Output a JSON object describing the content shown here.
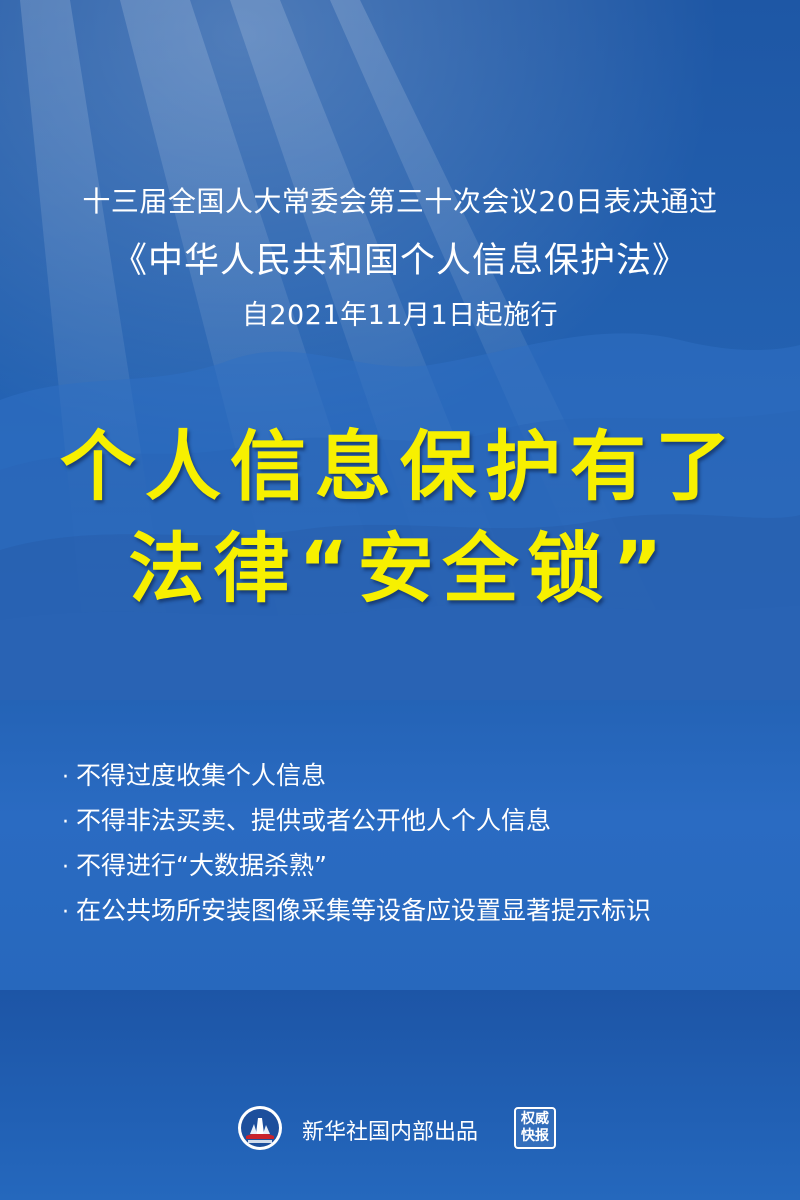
{
  "header": {
    "line1": "十三届全国人大常委会第三十次会议20日表决通过",
    "line2": "《中华人民共和国个人信息保护法》",
    "line3": "自2021年11月1日起施行"
  },
  "headline": {
    "line1": "个人信息保护有了",
    "line2": "法律“安全锁”"
  },
  "rules": [
    {
      "bullet": "·",
      "text": "不得过度收集个人信息"
    },
    {
      "bullet": "·",
      "text": "不得非法买卖、提供或者公开他人个人信息"
    },
    {
      "bullet": "·",
      "text": "不得进行“大数据杀熟”"
    },
    {
      "bullet": "·",
      "text": "在公共场所安装图像采集等设备应设置显著提示标识"
    }
  ],
  "footer": {
    "logo_icon": "xinhua-logo-icon",
    "text": "新华社国内部出品",
    "stamp": {
      "line1": "权威",
      "line2": "快报"
    }
  },
  "colors": {
    "background": "#2361b1",
    "headline": "#f7f000",
    "text": "#ffffff"
  }
}
